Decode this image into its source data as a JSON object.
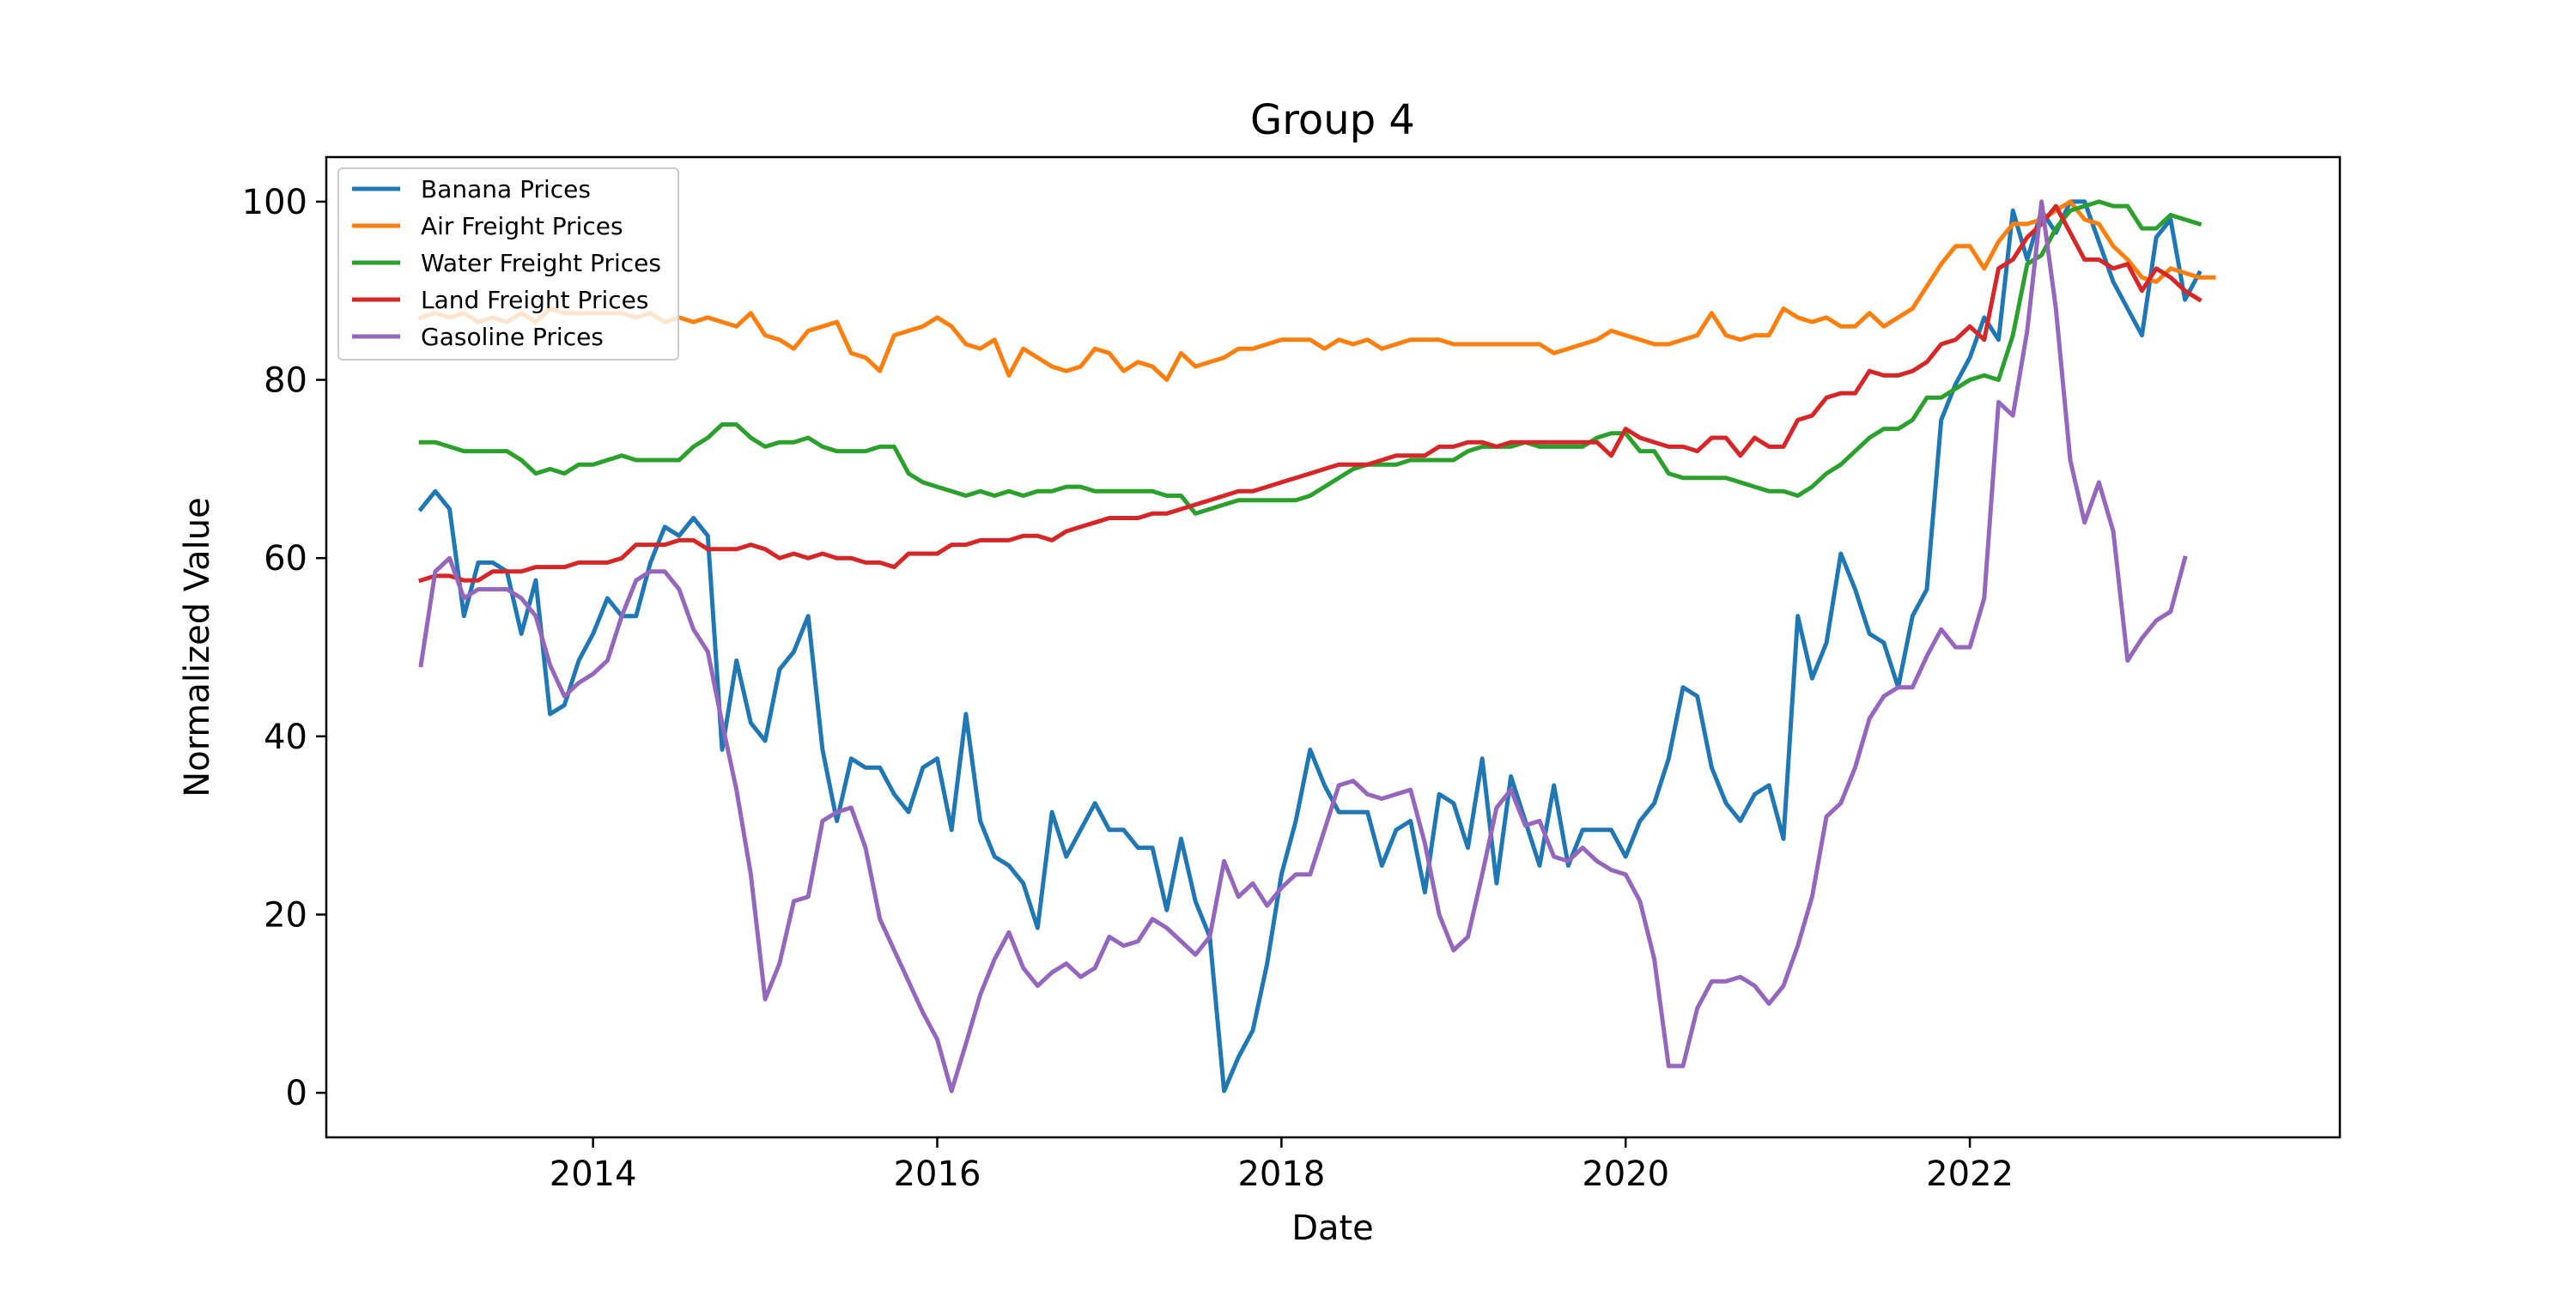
{
  "chart_data": {
    "type": "line",
    "title": "Group 4",
    "xlabel": "Date",
    "ylabel": "Normalized Value",
    "xlim": [
      2012.45,
      2024.15
    ],
    "ylim": [
      -5,
      105
    ],
    "x_ticks": [
      2014,
      2016,
      2018,
      2020,
      2022
    ],
    "x_tick_labels": [
      "2014",
      "2016",
      "2018",
      "2020",
      "2022"
    ],
    "y_ticks": [
      0,
      20,
      40,
      60,
      80,
      100
    ],
    "y_tick_labels": [
      "0",
      "20",
      "40",
      "60",
      "80",
      "100"
    ],
    "grid": false,
    "legend_position": "upper-left",
    "x_start": 2013.0,
    "x_step": 0.0833333,
    "series": [
      {
        "name": "Banana Prices",
        "color": "#1f77b4",
        "values": [
          65.5,
          67.5,
          65.5,
          53.5,
          59.5,
          59.5,
          58.5,
          51.5,
          57.5,
          42.5,
          43.5,
          48.5,
          51.5,
          55.5,
          53.5,
          53.5,
          59.5,
          63.5,
          62.5,
          64.5,
          62.5,
          38.5,
          48.5,
          41.5,
          39.5,
          47.5,
          49.5,
          53.5,
          38.5,
          30.5,
          37.5,
          36.5,
          36.5,
          33.5,
          31.5,
          36.5,
          37.5,
          29.5,
          42.5,
          30.5,
          26.5,
          25.5,
          23.5,
          18.5,
          31.5,
          26.5,
          29.5,
          32.5,
          29.5,
          29.5,
          27.5,
          27.5,
          20.5,
          28.5,
          21.5,
          17.5,
          0.2,
          4.0,
          7.0,
          14.5,
          24.5,
          30.5,
          38.5,
          34.5,
          31.5,
          31.5,
          31.5,
          25.5,
          29.5,
          30.5,
          22.5,
          33.5,
          32.5,
          27.5,
          37.5,
          23.5,
          35.5,
          30.5,
          25.5,
          34.5,
          25.5,
          29.5,
          29.5,
          29.5,
          26.5,
          30.5,
          32.5,
          37.5,
          45.5,
          44.5,
          36.5,
          32.5,
          30.5,
          33.5,
          34.5,
          28.5,
          53.5,
          46.5,
          50.5,
          60.5,
          56.5,
          51.5,
          50.5,
          45.5,
          53.5,
          56.5,
          75.5,
          79.5,
          82.5,
          87.0,
          84.5,
          99.0,
          93.5,
          99.0,
          96.5,
          100.0,
          100.0,
          95.5,
          91.0,
          88.0,
          85.0,
          96.0,
          98.0,
          89.0,
          92.0
        ]
      },
      {
        "name": "Air Freight Prices",
        "color": "#ff7f0e",
        "values": [
          87.0,
          87.5,
          87.0,
          87.5,
          86.5,
          87.0,
          86.5,
          87.5,
          86.5,
          88.0,
          87.5,
          87.5,
          87.5,
          87.5,
          87.5,
          87.0,
          87.5,
          86.5,
          87.0,
          86.5,
          87.0,
          86.5,
          86.0,
          87.5,
          85.0,
          84.5,
          83.5,
          85.5,
          86.0,
          86.5,
          83.0,
          82.5,
          81.0,
          85.0,
          85.5,
          86.0,
          87.0,
          86.0,
          84.0,
          83.5,
          84.5,
          80.5,
          83.5,
          82.5,
          81.5,
          81.0,
          81.5,
          83.5,
          83.0,
          81.0,
          82.0,
          81.5,
          80.0,
          83.0,
          81.5,
          82.0,
          82.5,
          83.5,
          83.5,
          84.0,
          84.5,
          84.5,
          84.5,
          83.5,
          84.5,
          84.0,
          84.5,
          83.5,
          84.0,
          84.5,
          84.5,
          84.5,
          84.0,
          84.0,
          84.0,
          84.0,
          84.0,
          84.0,
          84.0,
          83.0,
          83.5,
          84.0,
          84.5,
          85.5,
          85.0,
          84.5,
          84.0,
          84.0,
          84.5,
          85.0,
          87.5,
          85.0,
          84.5,
          85.0,
          85.0,
          88.0,
          87.0,
          86.5,
          87.0,
          86.0,
          86.0,
          87.5,
          86.0,
          87.0,
          88.0,
          90.5,
          93.0,
          95.0,
          95.0,
          92.5,
          95.5,
          97.5,
          97.5,
          98.0,
          99.0,
          100.0,
          98.0,
          97.5,
          95.0,
          93.5,
          91.5,
          91.0,
          92.5,
          92.0,
          91.5,
          91.5
        ]
      },
      {
        "name": "Water Freight Prices",
        "color": "#2ca02c",
        "values": [
          73.0,
          73.0,
          72.5,
          72.0,
          72.0,
          72.0,
          72.0,
          71.0,
          69.5,
          70.0,
          69.5,
          70.5,
          70.5,
          71.0,
          71.5,
          71.0,
          71.0,
          71.0,
          71.0,
          72.5,
          73.5,
          75.0,
          75.0,
          73.5,
          72.5,
          73.0,
          73.0,
          73.5,
          72.5,
          72.0,
          72.0,
          72.0,
          72.5,
          72.5,
          69.5,
          68.5,
          68.0,
          67.5,
          67.0,
          67.5,
          67.0,
          67.5,
          67.0,
          67.5,
          67.5,
          68.0,
          68.0,
          67.5,
          67.5,
          67.5,
          67.5,
          67.5,
          67.0,
          67.0,
          65.0,
          65.5,
          66.0,
          66.5,
          66.5,
          66.5,
          66.5,
          66.5,
          67.0,
          68.0,
          69.0,
          70.0,
          70.5,
          70.5,
          70.5,
          71.0,
          71.0,
          71.0,
          71.0,
          72.0,
          72.5,
          72.5,
          72.5,
          73.0,
          72.5,
          72.5,
          72.5,
          72.5,
          73.5,
          74.0,
          74.0,
          72.0,
          72.0,
          69.5,
          69.0,
          69.0,
          69.0,
          69.0,
          68.5,
          68.0,
          67.5,
          67.5,
          67.0,
          68.0,
          69.5,
          70.5,
          72.0,
          73.5,
          74.5,
          74.5,
          75.5,
          78.0,
          78.0,
          79.0,
          80.0,
          80.5,
          80.0,
          85.0,
          93.0,
          94.0,
          97.0,
          99.0,
          99.5,
          100.0,
          99.5,
          99.5,
          97.0,
          97.0,
          98.5,
          98.0,
          97.5
        ]
      },
      {
        "name": "Land Freight Prices",
        "color": "#d62728",
        "values": [
          57.5,
          58.0,
          58.0,
          57.5,
          57.5,
          58.5,
          58.5,
          58.5,
          59.0,
          59.0,
          59.0,
          59.5,
          59.5,
          59.5,
          60.0,
          61.5,
          61.5,
          61.5,
          62.0,
          62.0,
          61.0,
          61.0,
          61.0,
          61.5,
          61.0,
          60.0,
          60.5,
          60.0,
          60.5,
          60.0,
          60.0,
          59.5,
          59.5,
          59.0,
          60.5,
          60.5,
          60.5,
          61.5,
          61.5,
          62.0,
          62.0,
          62.0,
          62.5,
          62.5,
          62.0,
          63.0,
          63.5,
          64.0,
          64.5,
          64.5,
          64.5,
          65.0,
          65.0,
          65.5,
          66.0,
          66.5,
          67.0,
          67.5,
          67.5,
          68.0,
          68.5,
          69.0,
          69.5,
          70.0,
          70.5,
          70.5,
          70.5,
          71.0,
          71.5,
          71.5,
          71.5,
          72.5,
          72.5,
          73.0,
          73.0,
          72.5,
          73.0,
          73.0,
          73.0,
          73.0,
          73.0,
          73.0,
          73.0,
          71.5,
          74.5,
          73.5,
          73.0,
          72.5,
          72.5,
          72.0,
          73.5,
          73.5,
          71.5,
          73.5,
          72.5,
          72.5,
          75.5,
          76.0,
          78.0,
          78.5,
          78.5,
          81.0,
          80.5,
          80.5,
          81.0,
          82.0,
          84.0,
          84.5,
          86.0,
          84.5,
          92.5,
          93.5,
          96.0,
          97.5,
          99.5,
          96.5,
          93.5,
          93.5,
          92.5,
          93.0,
          90.0,
          92.5,
          91.5,
          90.0,
          89.0
        ]
      },
      {
        "name": "Gasoline Prices",
        "color": "#9467bd",
        "values": [
          48.0,
          58.5,
          60.0,
          55.5,
          56.5,
          56.5,
          56.5,
          55.5,
          53.5,
          48.0,
          44.5,
          46.0,
          47.0,
          48.5,
          53.5,
          57.5,
          58.5,
          58.5,
          56.5,
          52.0,
          49.5,
          41.5,
          34.0,
          24.5,
          10.5,
          14.5,
          21.5,
          22.0,
          30.5,
          31.5,
          32.0,
          27.5,
          19.5,
          16.0,
          12.5,
          9.0,
          6.0,
          0.2,
          5.5,
          11.0,
          15.0,
          18.0,
          14.0,
          12.0,
          13.5,
          14.5,
          13.0,
          14.0,
          17.5,
          16.5,
          17.0,
          19.5,
          18.5,
          17.0,
          15.5,
          17.5,
          26.0,
          22.0,
          23.5,
          21.0,
          23.0,
          24.5,
          24.5,
          29.5,
          34.5,
          35.0,
          33.5,
          33.0,
          33.5,
          34.0,
          28.0,
          20.0,
          16.0,
          17.5,
          24.5,
          32.0,
          34.0,
          30.0,
          30.5,
          26.5,
          26.0,
          27.5,
          26.0,
          25.0,
          24.5,
          21.5,
          15.0,
          3.0,
          3.0,
          9.5,
          12.5,
          12.5,
          13.0,
          12.0,
          10.0,
          12.0,
          16.5,
          22.0,
          31.0,
          32.5,
          36.5,
          42.0,
          44.5,
          45.5,
          45.5,
          49.0,
          52.0,
          50.0,
          50.0,
          55.5,
          77.5,
          76.0,
          85.5,
          100.0,
          88.0,
          71.0,
          64.0,
          68.5,
          63.0,
          48.5,
          51.0,
          53.0,
          54.0,
          60.0
        ]
      }
    ]
  }
}
